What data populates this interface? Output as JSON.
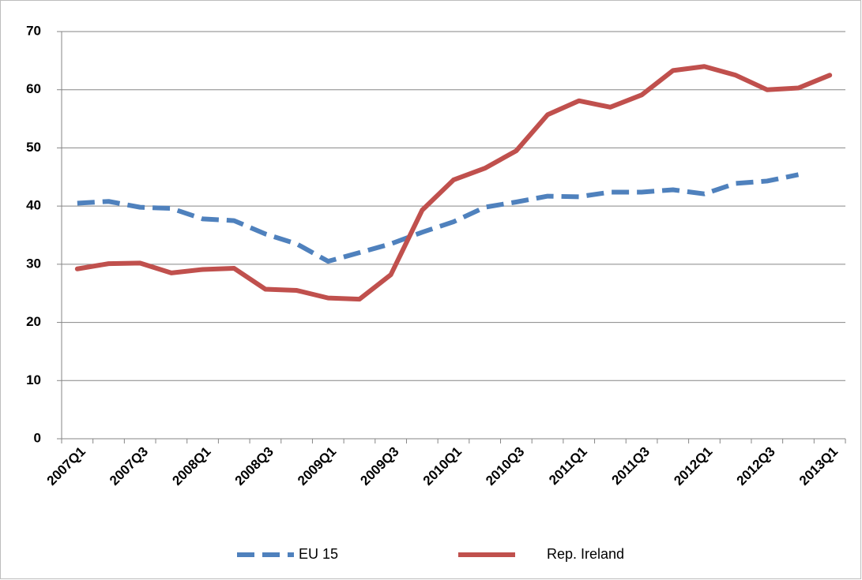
{
  "chart_data": {
    "type": "line",
    "categories": [
      "2007Q1",
      null,
      "2007Q3",
      null,
      "2008Q1",
      null,
      "2008Q3",
      null,
      "2009Q1",
      null,
      "2009Q3",
      null,
      "2010Q1",
      null,
      "2010Q3",
      null,
      "2011Q1",
      null,
      "2011Q3",
      null,
      "2012Q1",
      null,
      "2012Q3",
      null,
      "2013Q1"
    ],
    "series": [
      {
        "name": "EU 15",
        "color": "#4f81bd",
        "dashed": true,
        "values": [
          40.5,
          40.8,
          39.8,
          39.6,
          37.8,
          37.5,
          35.2,
          33.5,
          30.5,
          32.0,
          33.5,
          35.5,
          37.3,
          39.8,
          40.7,
          41.7,
          41.6,
          42.4,
          42.4,
          42.8,
          42.1,
          43.9,
          44.3,
          45.4,
          null
        ]
      },
      {
        "name": "Rep. Ireland",
        "color": "#c0504d",
        "dashed": false,
        "values": [
          29.2,
          30.1,
          30.2,
          28.5,
          29.1,
          29.3,
          25.7,
          25.5,
          24.2,
          24.0,
          28.2,
          39.3,
          44.5,
          46.5,
          49.5,
          55.7,
          58.1,
          57.0,
          59.1,
          63.3,
          64.0,
          62.5,
          60.0,
          60.3,
          62.5
        ]
      }
    ],
    "ylim": [
      0,
      70
    ],
    "yticks": [
      0,
      10,
      20,
      30,
      40,
      50,
      60,
      70
    ],
    "grid": true,
    "legend": "bottom"
  }
}
